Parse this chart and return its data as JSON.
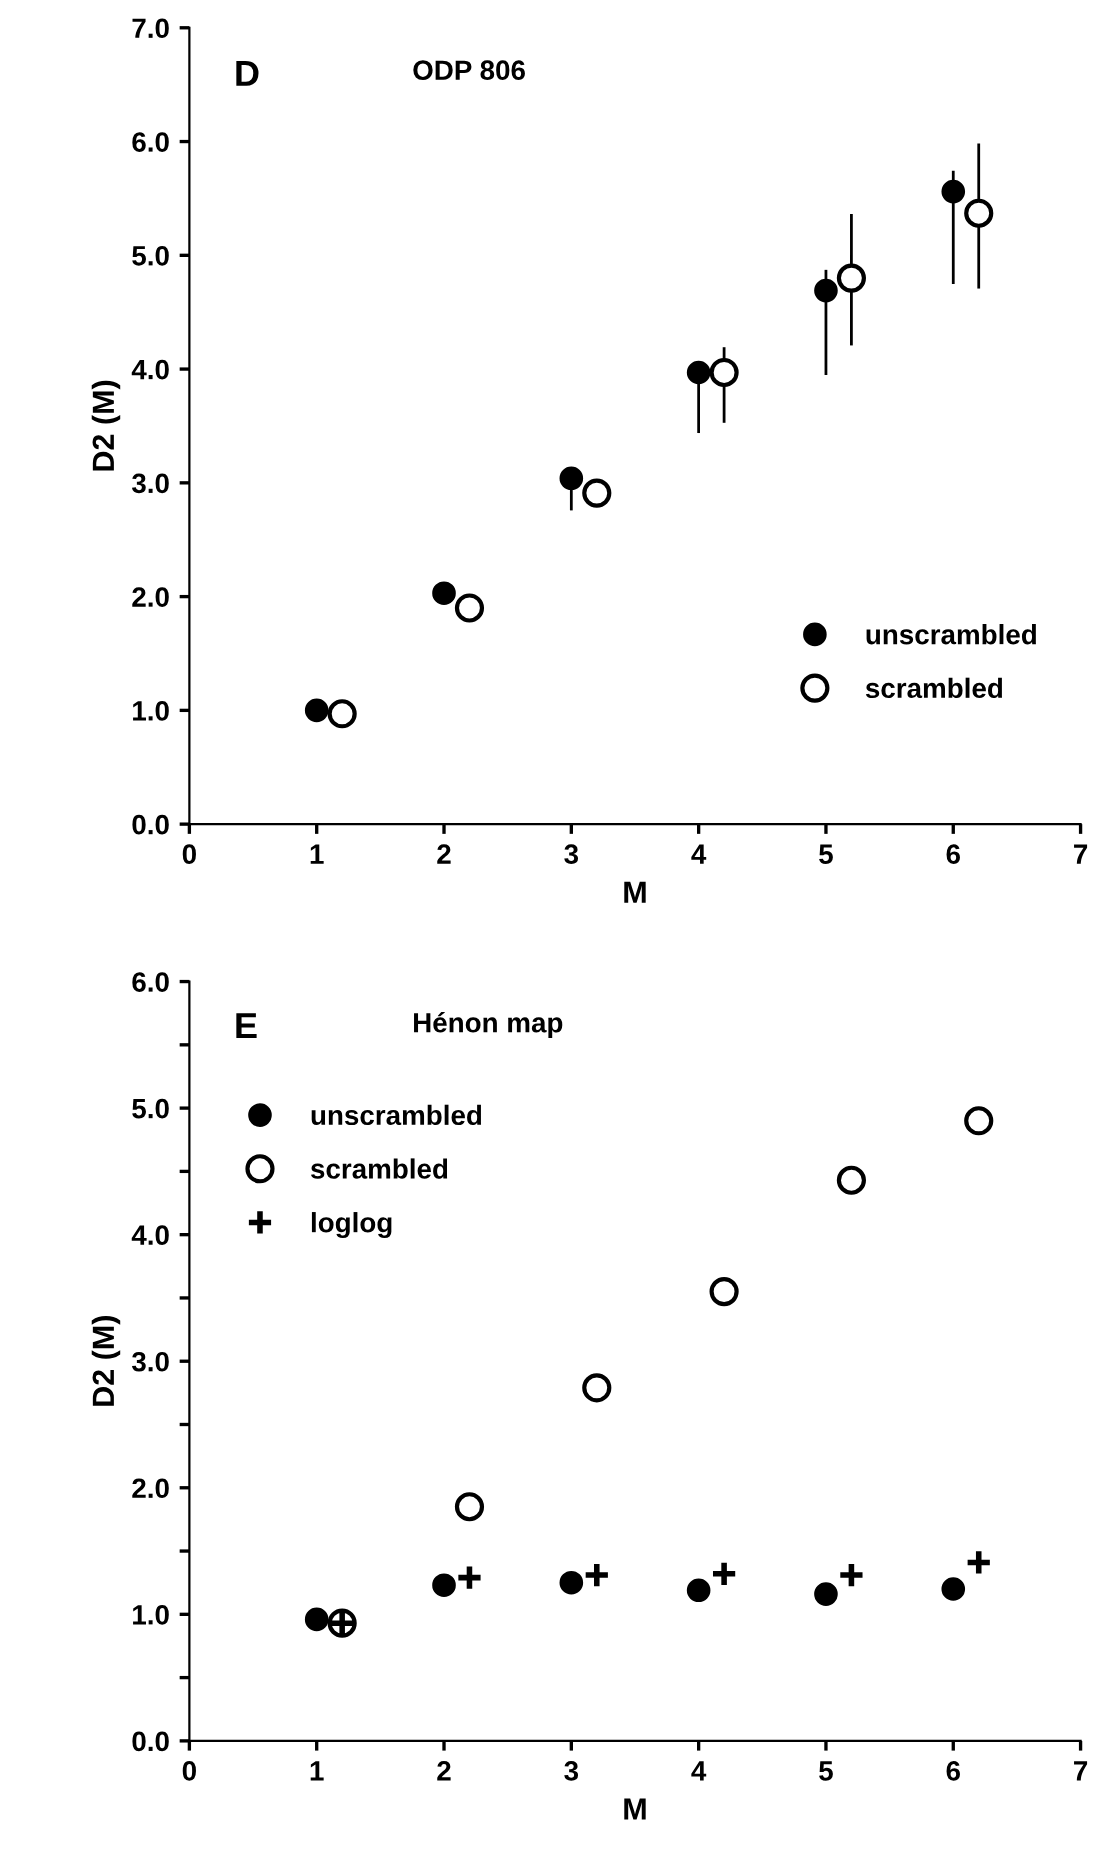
{
  "chart_data": [
    {
      "type": "scatter",
      "xlabel": "M",
      "ylabel": "D2 (M)",
      "annotations": [
        "D",
        "ODP 806"
      ],
      "xlim": [
        0,
        7
      ],
      "xticks": [
        0,
        1,
        2,
        3,
        4,
        5,
        6,
        7
      ],
      "ylim": [
        0,
        7
      ],
      "yticks": [
        {
          "value": 0,
          "label": "0.0"
        },
        {
          "value": 1,
          "label": "1.0"
        },
        {
          "value": 2,
          "label": "2.0"
        },
        {
          "value": 3,
          "label": "3.0"
        },
        {
          "value": 4,
          "label": "4.0"
        },
        {
          "value": 5,
          "label": "5.0"
        },
        {
          "value": 6,
          "label": "6.0"
        },
        {
          "value": 7,
          "label": "7.0"
        }
      ],
      "legend": "bottom right",
      "grid": false,
      "series": [
        {
          "name": "unscrambled",
          "color": "#000000",
          "marker": "circle",
          "x": [
            1,
            2,
            3,
            4,
            5,
            6
          ],
          "values": [
            1.0,
            2.03,
            3.04,
            3.97,
            4.69,
            5.56
          ],
          "errors": [
            null,
            null,
            [
              2.77,
              3.1
            ],
            [
              3.45,
              3.97
            ],
            [
              3.96,
              4.86
            ],
            [
              4.76,
              5.73
            ]
          ]
        },
        {
          "name": "scrambled",
          "color": "#000000",
          "marker": "circle",
          "x": [
            1.2,
            2.2,
            3.2,
            4.2,
            5.2,
            6.2
          ],
          "values": [
            0.97,
            1.9,
            2.91,
            3.97,
            4.8,
            5.37
          ],
          "errors": [
            null,
            null,
            null,
            [
              3.54,
              4.18
            ],
            [
              4.22,
              5.35
            ],
            [
              4.72,
              5.97
            ]
          ]
        }
      ]
    },
    {
      "type": "scatter",
      "xlabel": "M",
      "ylabel": "D2 (M)",
      "annotations": [
        "E",
        "Hénon map"
      ],
      "xlim": [
        0,
        7
      ],
      "xticks": [
        0,
        1,
        2,
        3,
        4,
        5,
        6,
        7
      ],
      "ylim": [
        0,
        6
      ],
      "yticks": [
        {
          "value": 0,
          "label": "0.0"
        },
        {
          "value": 0.5,
          "label": null
        },
        {
          "value": 1,
          "label": "1.0"
        },
        {
          "value": 1.5,
          "label": null
        },
        {
          "value": 2,
          "label": "2.0"
        },
        {
          "value": 2.5,
          "label": null
        },
        {
          "value": 3,
          "label": "3.0"
        },
        {
          "value": 3.5,
          "label": null
        },
        {
          "value": 4,
          "label": "4.0"
        },
        {
          "value": 4.5,
          "label": null
        },
        {
          "value": 5,
          "label": "5.0"
        },
        {
          "value": 5.5,
          "label": null
        },
        {
          "value": 6,
          "label": "6.0"
        }
      ],
      "legend": "left",
      "grid": false,
      "series": [
        {
          "name": "unscrambled",
          "color": "#000000",
          "marker": "circle",
          "x": [
            1,
            2,
            3,
            4,
            5,
            6
          ],
          "values": [
            0.96,
            1.23,
            1.25,
            1.19,
            1.16,
            1.2
          ]
        },
        {
          "name": "scrambled",
          "color": "#000000",
          "marker": "circle",
          "x": [
            1.2,
            2.2,
            3.2,
            4.2,
            5.2,
            6.2
          ],
          "values": [
            0.93,
            1.85,
            2.79,
            3.55,
            4.43,
            4.9
          ]
        },
        {
          "name": "loglog",
          "color": "#000000",
          "marker": "cross",
          "x": [
            1.2,
            2.2,
            3.2,
            4.2,
            5.2,
            6.2
          ],
          "values": [
            0.93,
            1.29,
            1.31,
            1.32,
            1.31,
            1.41
          ]
        }
      ]
    }
  ]
}
